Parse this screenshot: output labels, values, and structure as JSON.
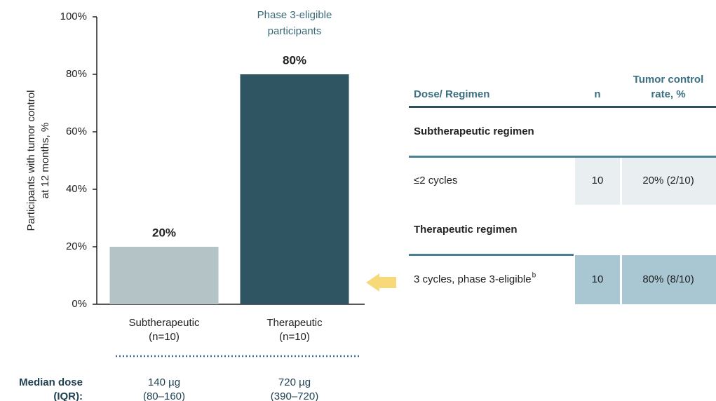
{
  "chart_data": {
    "type": "bar",
    "annotation": [
      "Phase 3-eligible",
      "participants"
    ],
    "ylabel": [
      "Participants with tumor control",
      "at 12 months, %"
    ],
    "categories": [
      "Subtherapeutic",
      "Therapeutic"
    ],
    "category_counts": [
      "(n=10)",
      "(n=10)"
    ],
    "values": [
      20,
      80
    ],
    "value_labels": [
      "20%",
      "80%"
    ],
    "colors": [
      "#b4c3c6",
      "#2f5562"
    ],
    "ylim": [
      0,
      100
    ],
    "yticks": [
      {
        "value": 0,
        "label": "0%"
      },
      {
        "value": 20,
        "label": "20%"
      },
      {
        "value": 40,
        "label": "40%"
      },
      {
        "value": 60,
        "label": "60%"
      },
      {
        "value": 80,
        "label": "80%"
      },
      {
        "value": 100,
        "label": "100%"
      }
    ],
    "median_dose": {
      "label": [
        "Median dose",
        "(IQR):"
      ],
      "values": [
        [
          "140 µg",
          "(80–160)"
        ],
        [
          "720 µg",
          "(390–720)"
        ]
      ]
    }
  },
  "table": {
    "header": [
      "Dose/ Regimen",
      "n",
      [
        "Tumor control",
        "rate, %"
      ]
    ],
    "sections": [
      {
        "title": "Subtherapeutic regimen",
        "rows": [
          {
            "cells": [
              "≤2 cycles",
              "10",
              "20% (2/10)"
            ]
          }
        ]
      },
      {
        "title": "Therapeutic regimen",
        "rows": [
          {
            "cells": [
              "3 cycles, phase 3-eligible",
              "10",
              "80% (8/10)"
            ],
            "footnote": "b"
          }
        ]
      }
    ]
  }
}
